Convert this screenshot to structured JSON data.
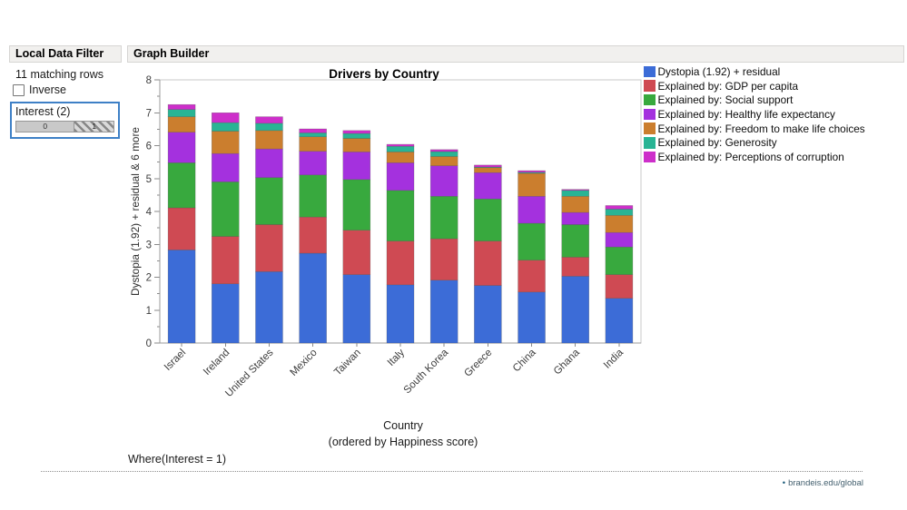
{
  "filter_panel": {
    "header": "Local Data Filter",
    "matching_rows": "11 matching rows",
    "inverse_label": "Inverse",
    "inverse_checked": false,
    "field": {
      "label": "Interest (2)",
      "segments": [
        {
          "label": "0",
          "selected": false,
          "width_pct": 60
        },
        {
          "label": "1",
          "selected": true,
          "width_pct": 40
        }
      ]
    }
  },
  "graph_panel": {
    "header": "Graph Builder",
    "where_clause": "Where(Interest = 1)"
  },
  "footer": {
    "bullet": "•",
    "link_text": "brandeis.edu/global",
    "color": "#44606f"
  },
  "chart_data": {
    "type": "bar",
    "stacked": true,
    "title": "Drivers by Country",
    "xlabel": "Country",
    "xlabel_note": "(ordered by Happiness score)",
    "ylabel": "Dystopia (1.92) + residual & 6 more",
    "ylim": [
      0,
      8
    ],
    "ytick_step": 1,
    "ytick_minor_step": 0.5,
    "grid": false,
    "legend_position": "outside-top-right",
    "categories": [
      "Israel",
      "Ireland",
      "United States",
      "Mexico",
      "Taiwan",
      "Italy",
      "South Korea",
      "Greece",
      "China",
      "Ghana",
      "India"
    ],
    "totals": [
      7.25,
      7.0,
      6.88,
      6.51,
      6.46,
      6.04,
      5.88,
      5.41,
      5.24,
      4.67,
      4.18
    ],
    "series": [
      {
        "name": "Dystopia (1.92) + residual",
        "color": "#3c6cd7",
        "values": [
          2.83,
          1.8,
          2.17,
          2.73,
          2.08,
          1.77,
          1.91,
          1.75,
          1.55,
          2.03,
          1.36
        ]
      },
      {
        "name": "Explained by: GDP per capita",
        "color": "#cf4a53",
        "values": [
          1.28,
          1.44,
          1.43,
          1.1,
          1.35,
          1.33,
          1.26,
          1.35,
          0.97,
          0.58,
          0.72
        ]
      },
      {
        "name": "Explained by: Social support",
        "color": "#38a93e",
        "values": [
          1.37,
          1.66,
          1.43,
          1.28,
          1.54,
          1.54,
          1.29,
          1.28,
          1.12,
          0.99,
          0.84
        ]
      },
      {
        "name": "Explained by: Healthy life expectancy",
        "color": "#a431de",
        "values": [
          0.93,
          0.86,
          0.87,
          0.72,
          0.84,
          0.84,
          0.93,
          0.8,
          0.82,
          0.37,
          0.44
        ]
      },
      {
        "name": "Explained by: Freedom to make life choices",
        "color": "#cb7e2e",
        "values": [
          0.47,
          0.68,
          0.56,
          0.44,
          0.41,
          0.33,
          0.28,
          0.15,
          0.7,
          0.49,
          0.52
        ]
      },
      {
        "name": "Explained by: Generosity",
        "color": "#29b494",
        "values": [
          0.22,
          0.26,
          0.22,
          0.12,
          0.15,
          0.17,
          0.15,
          0.02,
          0.03,
          0.18,
          0.19
        ]
      },
      {
        "name": "Explained by: Perceptions of corruption",
        "color": "#cd2fca",
        "values": [
          0.15,
          0.3,
          0.2,
          0.12,
          0.09,
          0.06,
          0.06,
          0.06,
          0.05,
          0.03,
          0.11
        ]
      }
    ]
  }
}
